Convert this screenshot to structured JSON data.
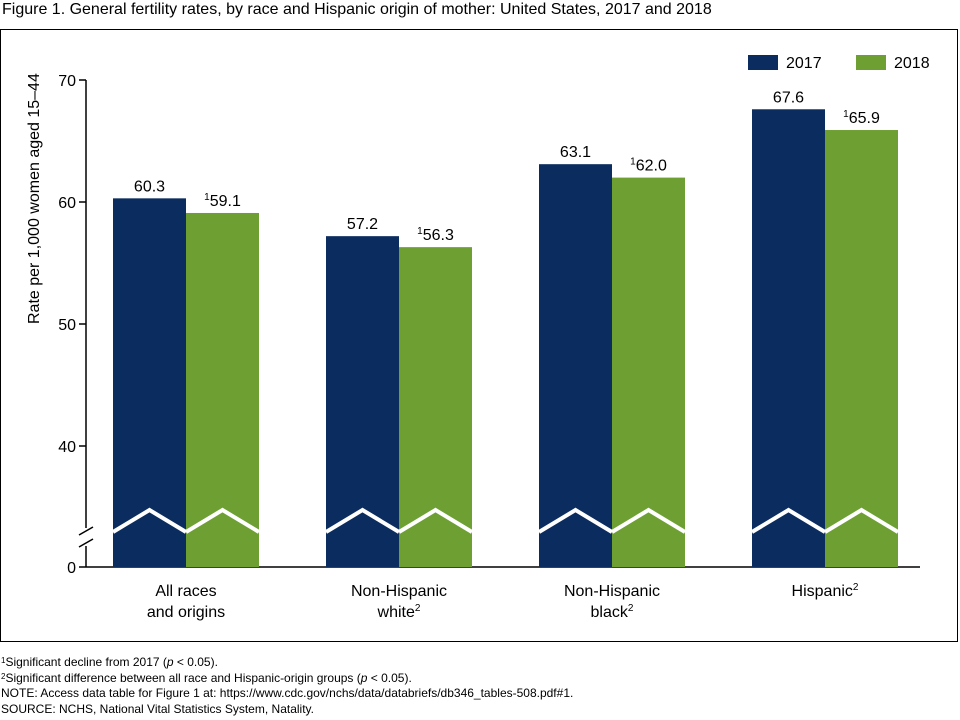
{
  "title": "Figure 1. General fertility rates, by race and Hispanic origin of mother: United States, 2017 and 2018",
  "chart_data": {
    "type": "bar",
    "categories": [
      "All races and origins",
      "Non-Hispanic white",
      "Non-Hispanic black",
      "Hispanic"
    ],
    "category_lines": [
      [
        "All races",
        "and origins",
        ""
      ],
      [
        "Non-Hispanic",
        "white",
        "2"
      ],
      [
        "Non-Hispanic",
        "black",
        "2"
      ],
      [
        "Hispanic",
        "",
        "2"
      ]
    ],
    "series": [
      {
        "name": "2017",
        "color": "#0b2c5e",
        "values": [
          60.3,
          57.2,
          63.1,
          67.6
        ],
        "marks": [
          "",
          "",
          "",
          ""
        ]
      },
      {
        "name": "2018",
        "color": "#6e9f33",
        "values": [
          59.1,
          56.3,
          62.0,
          65.9
        ],
        "marks": [
          "1",
          "1",
          "1",
          "1"
        ]
      }
    ],
    "ylabel": "Rate per 1,000 women aged 15–44",
    "yticks": [
      0,
      40,
      50,
      60,
      70
    ],
    "ylim": [
      0,
      70
    ],
    "axis_break": true,
    "legend_position": "top-right"
  },
  "notes": [
    {
      "sup": "1",
      "text": "Significant decline from 2017 (",
      "italic": "p",
      "after": " < 0.05)."
    },
    {
      "sup": "2",
      "text": "Significant difference between all race and Hispanic-origin groups (",
      "italic": "p",
      "after": " < 0.05)."
    },
    {
      "sup": "",
      "text": "NOTE: Access data table for Figure 1 at: https://www.cdc.gov/nchs/data/databriefs/db346_tables-508.pdf#1.",
      "italic": "",
      "after": ""
    },
    {
      "sup": "",
      "text": "SOURCE: NCHS, National Vital Statistics System, Natality.",
      "italic": "",
      "after": ""
    }
  ]
}
